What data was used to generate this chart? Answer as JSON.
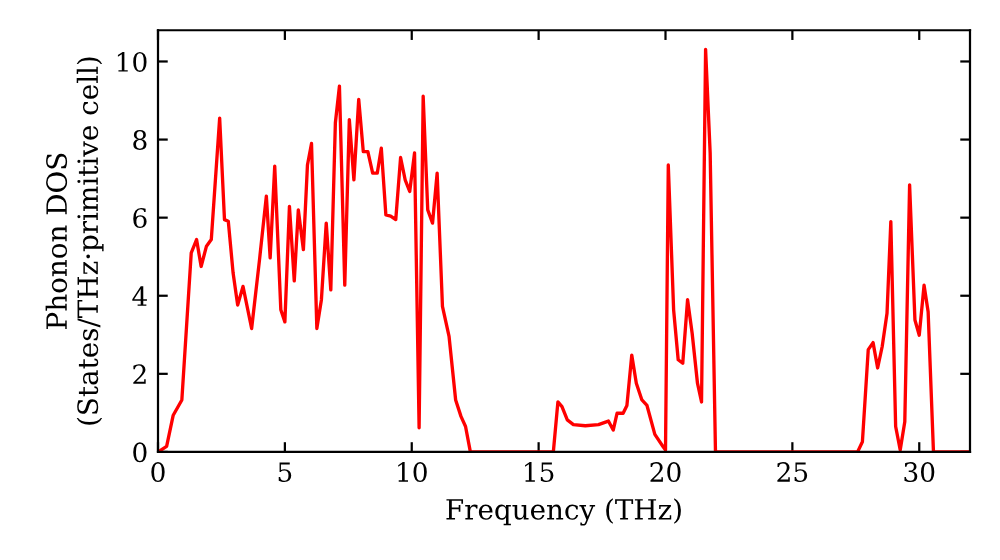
{
  "chart_data": {
    "type": "line",
    "xlabel": "Frequency (THz)",
    "ylabel": "Phonon DOS\n(States/THz·primitive cell)",
    "xlim": [
      0,
      32
    ],
    "ylim": [
      0,
      10.8
    ],
    "xticks": [
      0,
      5,
      10,
      15,
      20,
      25,
      30
    ],
    "yticks": [
      0,
      2,
      4,
      6,
      8,
      10
    ],
    "grid": false,
    "marker": "none",
    "line_style": "solid",
    "series": [
      {
        "color": "#ff0000",
        "x": [
          0,
          0.34,
          0.6,
          0.94,
          1.31,
          1.52,
          1.7,
          1.91,
          2.1,
          2.43,
          2.62,
          2.77,
          2.96,
          3.14,
          3.35,
          3.69,
          4.0,
          4.27,
          4.42,
          4.6,
          4.84,
          5.0,
          5.18,
          5.37,
          5.53,
          5.73,
          5.89,
          6.05,
          6.26,
          6.44,
          6.63,
          6.81,
          6.99,
          7.15,
          7.36,
          7.54,
          7.72,
          7.91,
          8.09,
          8.27,
          8.46,
          8.64,
          8.8,
          8.98,
          9.17,
          9.37,
          9.56,
          9.74,
          9.92,
          10.11,
          10.29,
          10.45,
          10.63,
          10.82,
          11.0,
          11.21,
          11.47,
          11.73,
          11.94,
          12.12,
          12.31,
          15.58,
          15.76,
          15.92,
          16.13,
          16.37,
          16.84,
          17.36,
          17.75,
          17.94,
          18.09,
          18.33,
          18.48,
          18.67,
          18.85,
          19.07,
          19.27,
          19.58,
          19.9,
          20.0,
          20.11,
          20.32,
          20.5,
          20.68,
          20.87,
          21.05,
          21.26,
          21.42,
          21.58,
          21.76,
          21.97,
          27.57,
          27.76,
          27.99,
          28.18,
          28.36,
          28.54,
          28.73,
          28.88,
          29.07,
          29.25,
          29.43,
          29.62,
          29.83,
          30.0,
          30.19,
          30.35,
          30.56,
          32
        ],
        "values": [
          0,
          0.14,
          0.94,
          1.33,
          5.1,
          5.44,
          4.75,
          5.27,
          5.44,
          8.55,
          5.95,
          5.91,
          4.58,
          3.76,
          4.24,
          3.16,
          4.92,
          6.55,
          4.97,
          7.32,
          3.64,
          3.33,
          6.29,
          4.38,
          6.2,
          5.18,
          7.35,
          7.9,
          3.16,
          3.9,
          5.86,
          4.15,
          8.43,
          9.37,
          4.27,
          8.51,
          6.97,
          9.03,
          7.69,
          7.69,
          7.14,
          7.14,
          7.78,
          6.07,
          6.04,
          5.95,
          7.54,
          6.97,
          6.67,
          7.66,
          0.62,
          9.11,
          6.2,
          5.86,
          7.14,
          3.73,
          2.96,
          1.33,
          0.91,
          0.65,
          0,
          0,
          1.28,
          1.16,
          0.82,
          0.7,
          0.67,
          0.7,
          0.79,
          0.56,
          0.99,
          0.99,
          1.19,
          2.48,
          1.76,
          1.33,
          1.19,
          0.45,
          0.14,
          0.05,
          7.35,
          3.64,
          2.36,
          2.27,
          3.9,
          3.04,
          1.76,
          1.28,
          10.31,
          7.66,
          0,
          0,
          0.26,
          2.62,
          2.8,
          2.15,
          2.7,
          3.55,
          5.9,
          0.65,
          0.05,
          0.77,
          6.84,
          3.38,
          2.99,
          4.27,
          3.59,
          0,
          0
        ]
      }
    ]
  }
}
